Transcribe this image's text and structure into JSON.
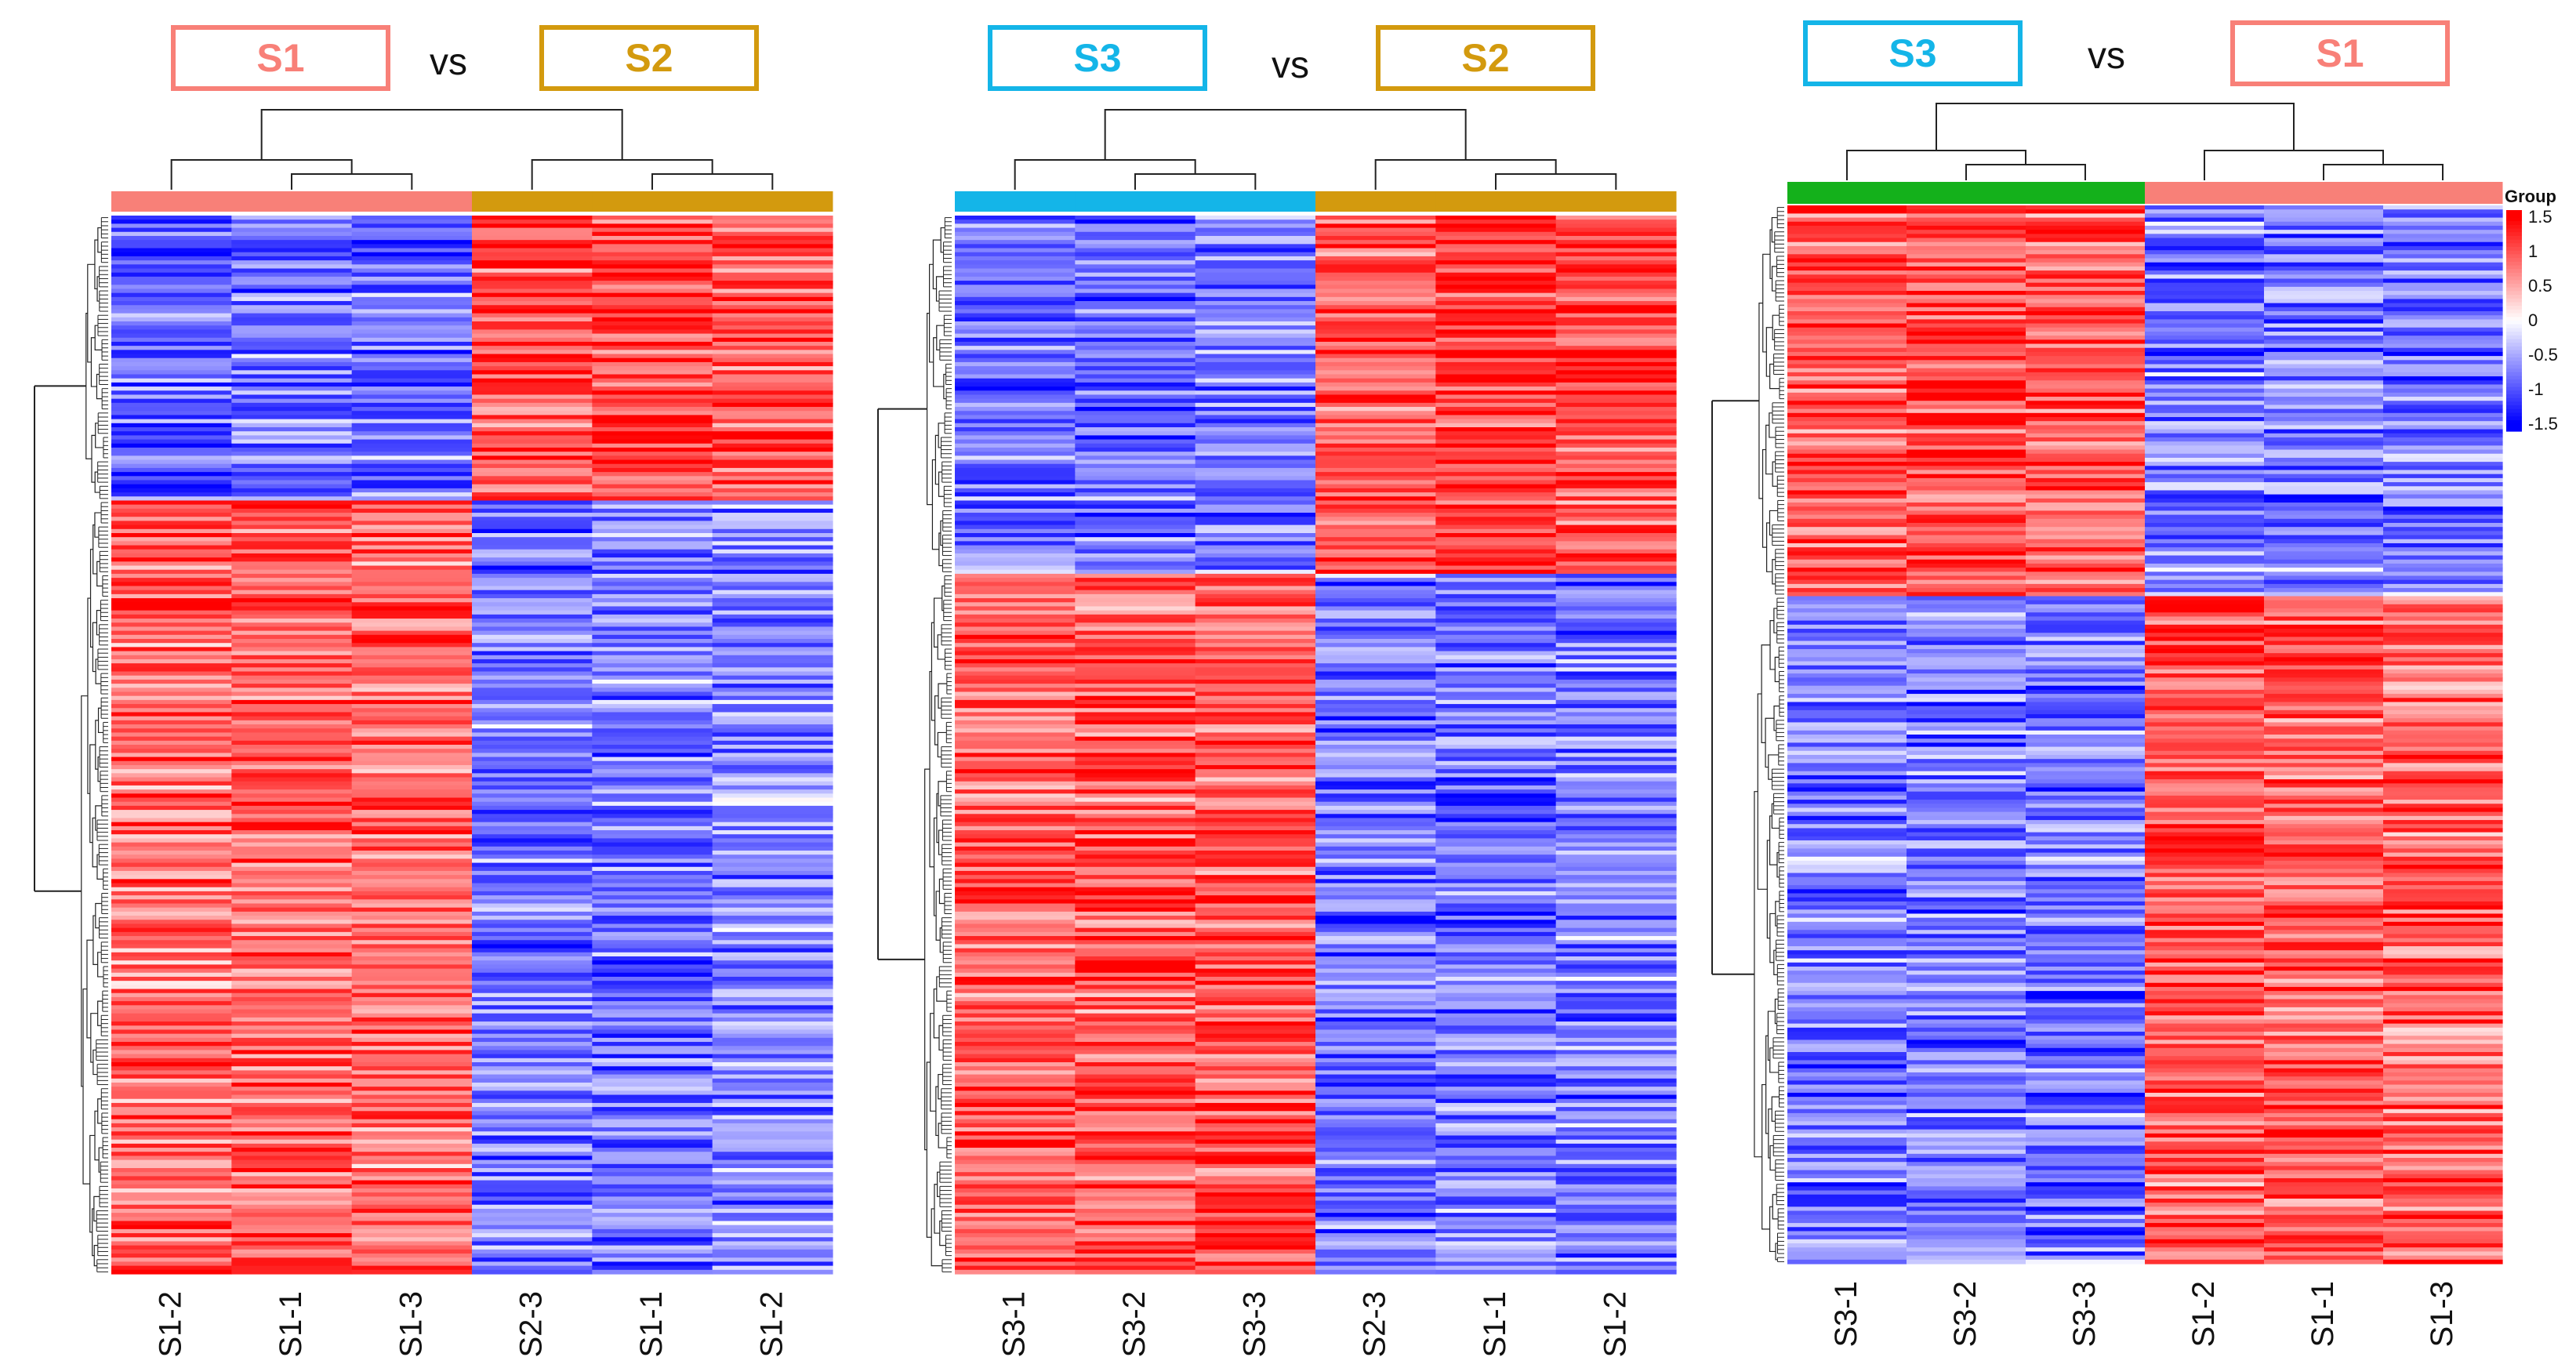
{
  "colors": {
    "S1": "#f88078",
    "S2": "#d39a0e",
    "S3": "#14b5e8",
    "S3_bar_panel3": "#14b11b",
    "heat_high": "#ff0000",
    "heat_mid": "#ffffff",
    "heat_low": "#0000ff"
  },
  "legend": {
    "title": "Group",
    "ticks": [
      "1.5",
      "1",
      "0.5",
      "0",
      "-0.5",
      "-1",
      "-1.5"
    ]
  },
  "chart_data": [
    {
      "type": "heatmap",
      "title_left": "S1",
      "title_vs": "vs",
      "title_right": "S2",
      "columns": [
        "S1-2",
        "S1-1",
        "S1-3",
        "S2-3",
        "S1-1",
        "S1-2"
      ],
      "column_groups": [
        "S1",
        "S1",
        "S1",
        "S2",
        "S2",
        "S2"
      ],
      "value_range": [
        -1.5,
        1.5
      ],
      "row_clusters": [
        {
          "share": 0.27,
          "means": [
            -1.0,
            -0.8,
            -0.9,
            1.0,
            1.1,
            1.0
          ]
        },
        {
          "share": 0.73,
          "means": [
            0.9,
            1.0,
            0.9,
            -0.8,
            -0.8,
            -0.7
          ]
        }
      ]
    },
    {
      "type": "heatmap",
      "title_left": "S3",
      "title_vs": "vs",
      "title_right": "S2",
      "columns": [
        "S3-1",
        "S3-2",
        "S3-3",
        "S2-3",
        "S1-1",
        "S1-2"
      ],
      "column_groups": [
        "S3",
        "S3",
        "S3",
        "S2",
        "S2",
        "S2"
      ],
      "value_range": [
        -1.5,
        1.5
      ],
      "row_clusters": [
        {
          "share": 0.34,
          "means": [
            -0.9,
            -0.9,
            -0.8,
            1.0,
            1.1,
            1.0
          ]
        },
        {
          "share": 0.66,
          "means": [
            1.0,
            1.0,
            1.0,
            -0.8,
            -0.8,
            -0.8
          ]
        }
      ]
    },
    {
      "type": "heatmap",
      "title_left": "S3",
      "title_vs": "vs",
      "title_right": "S1",
      "columns": [
        "S3-1",
        "S3-2",
        "S3-3",
        "S1-2",
        "S1-1",
        "S1-3"
      ],
      "column_groups": [
        "S3",
        "S3",
        "S3",
        "S1",
        "S1",
        "S1"
      ],
      "value_range": [
        -1.5,
        1.5
      ],
      "row_clusters": [
        {
          "share": 0.37,
          "means": [
            1.0,
            1.0,
            1.0,
            -0.8,
            -0.8,
            -0.8
          ]
        },
        {
          "share": 0.63,
          "means": [
            -0.8,
            -0.8,
            -0.8,
            1.0,
            1.0,
            0.9
          ]
        }
      ]
    }
  ]
}
